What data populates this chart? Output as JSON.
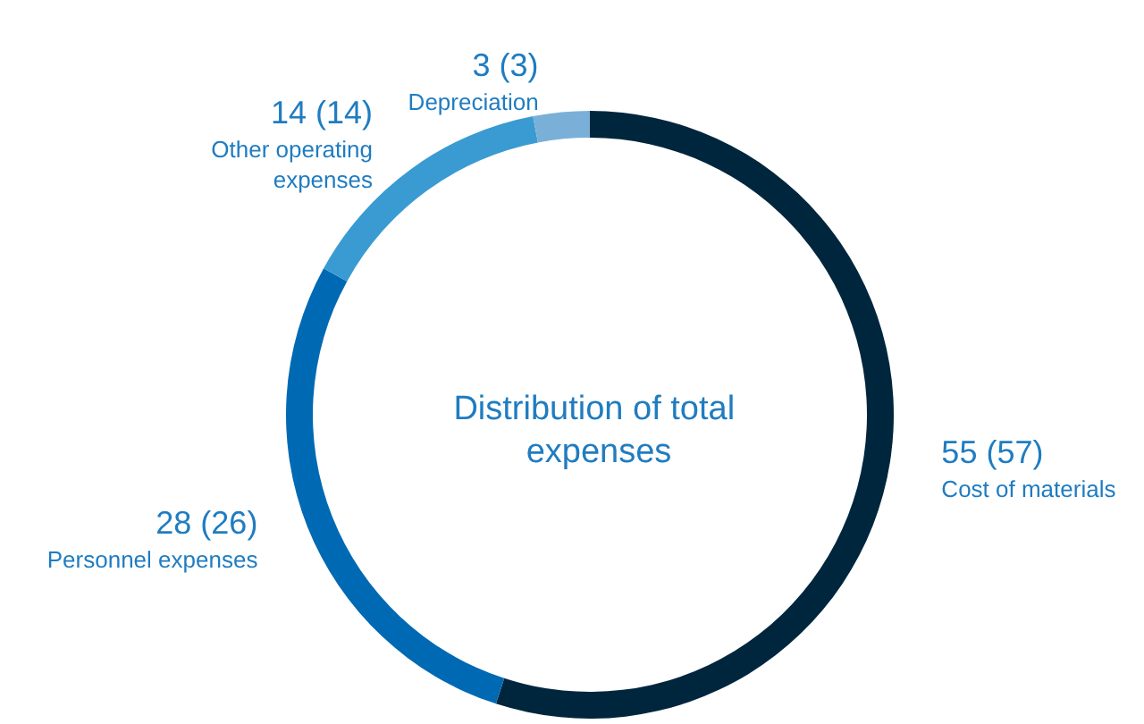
{
  "chart_data": {
    "type": "donut",
    "title": "Distribution of total expenses",
    "categories": [
      "Cost of materials",
      "Personnel expenses",
      "Other operating expenses",
      "Depreciation"
    ],
    "values": [
      55,
      28,
      14,
      3
    ],
    "value_labels": [
      "55 (57)",
      "28 (26)",
      "14 (14)",
      "3 (3)"
    ],
    "colors": [
      "#00263e",
      "#0069b4",
      "#3a9bd2",
      "#7ab0d8"
    ],
    "legend": false
  }
}
